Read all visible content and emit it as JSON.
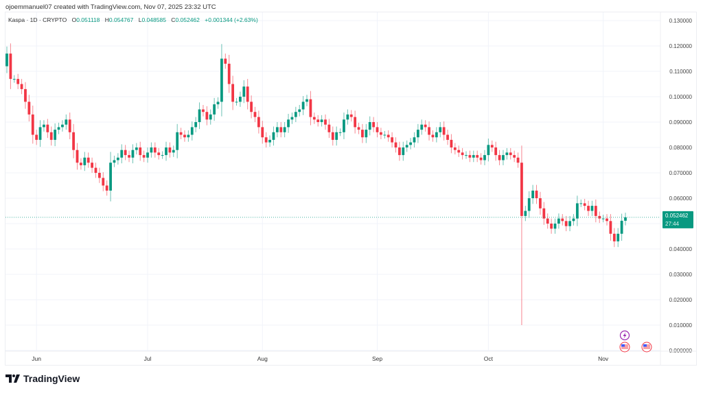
{
  "credit": "ojoemmanuel07 created with TradingView.com, Nov 07, 2025 23:32 UTC",
  "legend": {
    "symbol": "Kaspa · 1D · CRYPTO",
    "o_label": "O",
    "o": "0.051118",
    "h_label": "H",
    "h": "0.054767",
    "l_label": "L",
    "l": "0.048585",
    "c_label": "C",
    "c": "0.052462",
    "change": "+0.001344 (+2.63%)"
  },
  "price_label": {
    "price": "0.052462",
    "countdown": "27:44"
  },
  "footer": {
    "brand": "TradingView"
  },
  "icons": [
    "lightning-event-icon",
    "us-flag-event-icon",
    "us-flag-event-icon"
  ],
  "colors": {
    "up": "#089981",
    "down": "#f23645",
    "grid": "#f0f3fa",
    "price_line": "#089981",
    "event": "#9c27b0"
  },
  "chart_data": {
    "type": "candlestick",
    "last_date": "2025-11-07",
    "interval": "1D",
    "ylim": [
      0,
      0.13
    ],
    "yticks": [
      "0.000000",
      "0.010000",
      "0.020000",
      "0.030000",
      "0.040000",
      "0.050000",
      "0.060000",
      "0.070000",
      "0.080000",
      "0.090000",
      "0.100000",
      "0.110000",
      "0.120000",
      "0.130000"
    ],
    "xticks": [
      {
        "label": "Jun",
        "date": "2025-06-01"
      },
      {
        "label": "Jul",
        "date": "2025-07-01"
      },
      {
        "label": "Aug",
        "date": "2025-08-01"
      },
      {
        "label": "Sep",
        "date": "2025-09-01"
      },
      {
        "label": "Oct",
        "date": "2025-10-01"
      },
      {
        "label": "Nov",
        "date": "2025-11-01"
      }
    ],
    "grid": true,
    "first_open": 0.112,
    "closes": [
      0.117,
      0.107,
      0.107,
      0.105,
      0.103,
      0.098,
      0.093,
      0.085,
      0.083,
      0.088,
      0.089,
      0.086,
      0.083,
      0.087,
      0.088,
      0.089,
      0.091,
      0.086,
      0.079,
      0.074,
      0.073,
      0.076,
      0.074,
      0.072,
      0.07,
      0.068,
      0.065,
      0.063,
      0.074,
      0.075,
      0.076,
      0.079,
      0.077,
      0.076,
      0.079,
      0.08,
      0.077,
      0.076,
      0.078,
      0.08,
      0.078,
      0.077,
      0.077,
      0.08,
      0.078,
      0.079,
      0.086,
      0.085,
      0.084,
      0.085,
      0.088,
      0.09,
      0.095,
      0.094,
      0.091,
      0.093,
      0.097,
      0.098,
      0.115,
      0.113,
      0.105,
      0.098,
      0.098,
      0.1,
      0.104,
      0.098,
      0.094,
      0.092,
      0.088,
      0.084,
      0.082,
      0.083,
      0.086,
      0.088,
      0.086,
      0.088,
      0.091,
      0.092,
      0.094,
      0.095,
      0.098,
      0.099,
      0.092,
      0.091,
      0.09,
      0.091,
      0.089,
      0.086,
      0.083,
      0.086,
      0.086,
      0.091,
      0.093,
      0.092,
      0.088,
      0.087,
      0.084,
      0.087,
      0.09,
      0.088,
      0.086,
      0.085,
      0.085,
      0.084,
      0.082,
      0.08,
      0.077,
      0.08,
      0.081,
      0.082,
      0.084,
      0.087,
      0.089,
      0.088,
      0.085,
      0.084,
      0.086,
      0.088,
      0.085,
      0.083,
      0.08,
      0.079,
      0.078,
      0.077,
      0.077,
      0.076,
      0.077,
      0.076,
      0.075,
      0.077,
      0.081,
      0.08,
      0.077,
      0.075,
      0.077,
      0.078,
      0.077,
      0.076,
      0.074,
      0.053,
      0.055,
      0.06,
      0.063,
      0.06,
      0.056,
      0.052,
      0.05,
      0.048,
      0.05,
      0.052,
      0.051,
      0.049,
      0.051,
      0.052,
      0.058,
      0.058,
      0.057,
      0.055,
      0.057,
      0.053,
      0.052,
      0.052,
      0.051,
      0.046,
      0.043,
      0.046,
      0.051118,
      0.052462
    ],
    "notable_low": {
      "date": "2025-10-10",
      "low": 0.01
    }
  }
}
